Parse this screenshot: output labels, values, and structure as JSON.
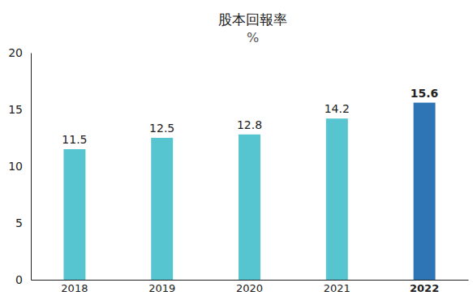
{
  "chart_data": {
    "type": "bar",
    "title": "股本回報率",
    "subtitle": "%",
    "categories": [
      "2018",
      "2019",
      "2020",
      "2021",
      "2022"
    ],
    "values": [
      11.5,
      12.5,
      12.8,
      14.2,
      15.6
    ],
    "colors": [
      "#56c5d0",
      "#56c5d0",
      "#56c5d0",
      "#56c5d0",
      "#2e75b6"
    ],
    "ylim": [
      0,
      20
    ],
    "yticks": [
      0,
      5,
      10,
      15,
      20
    ],
    "grid": false,
    "data_labels": true
  }
}
